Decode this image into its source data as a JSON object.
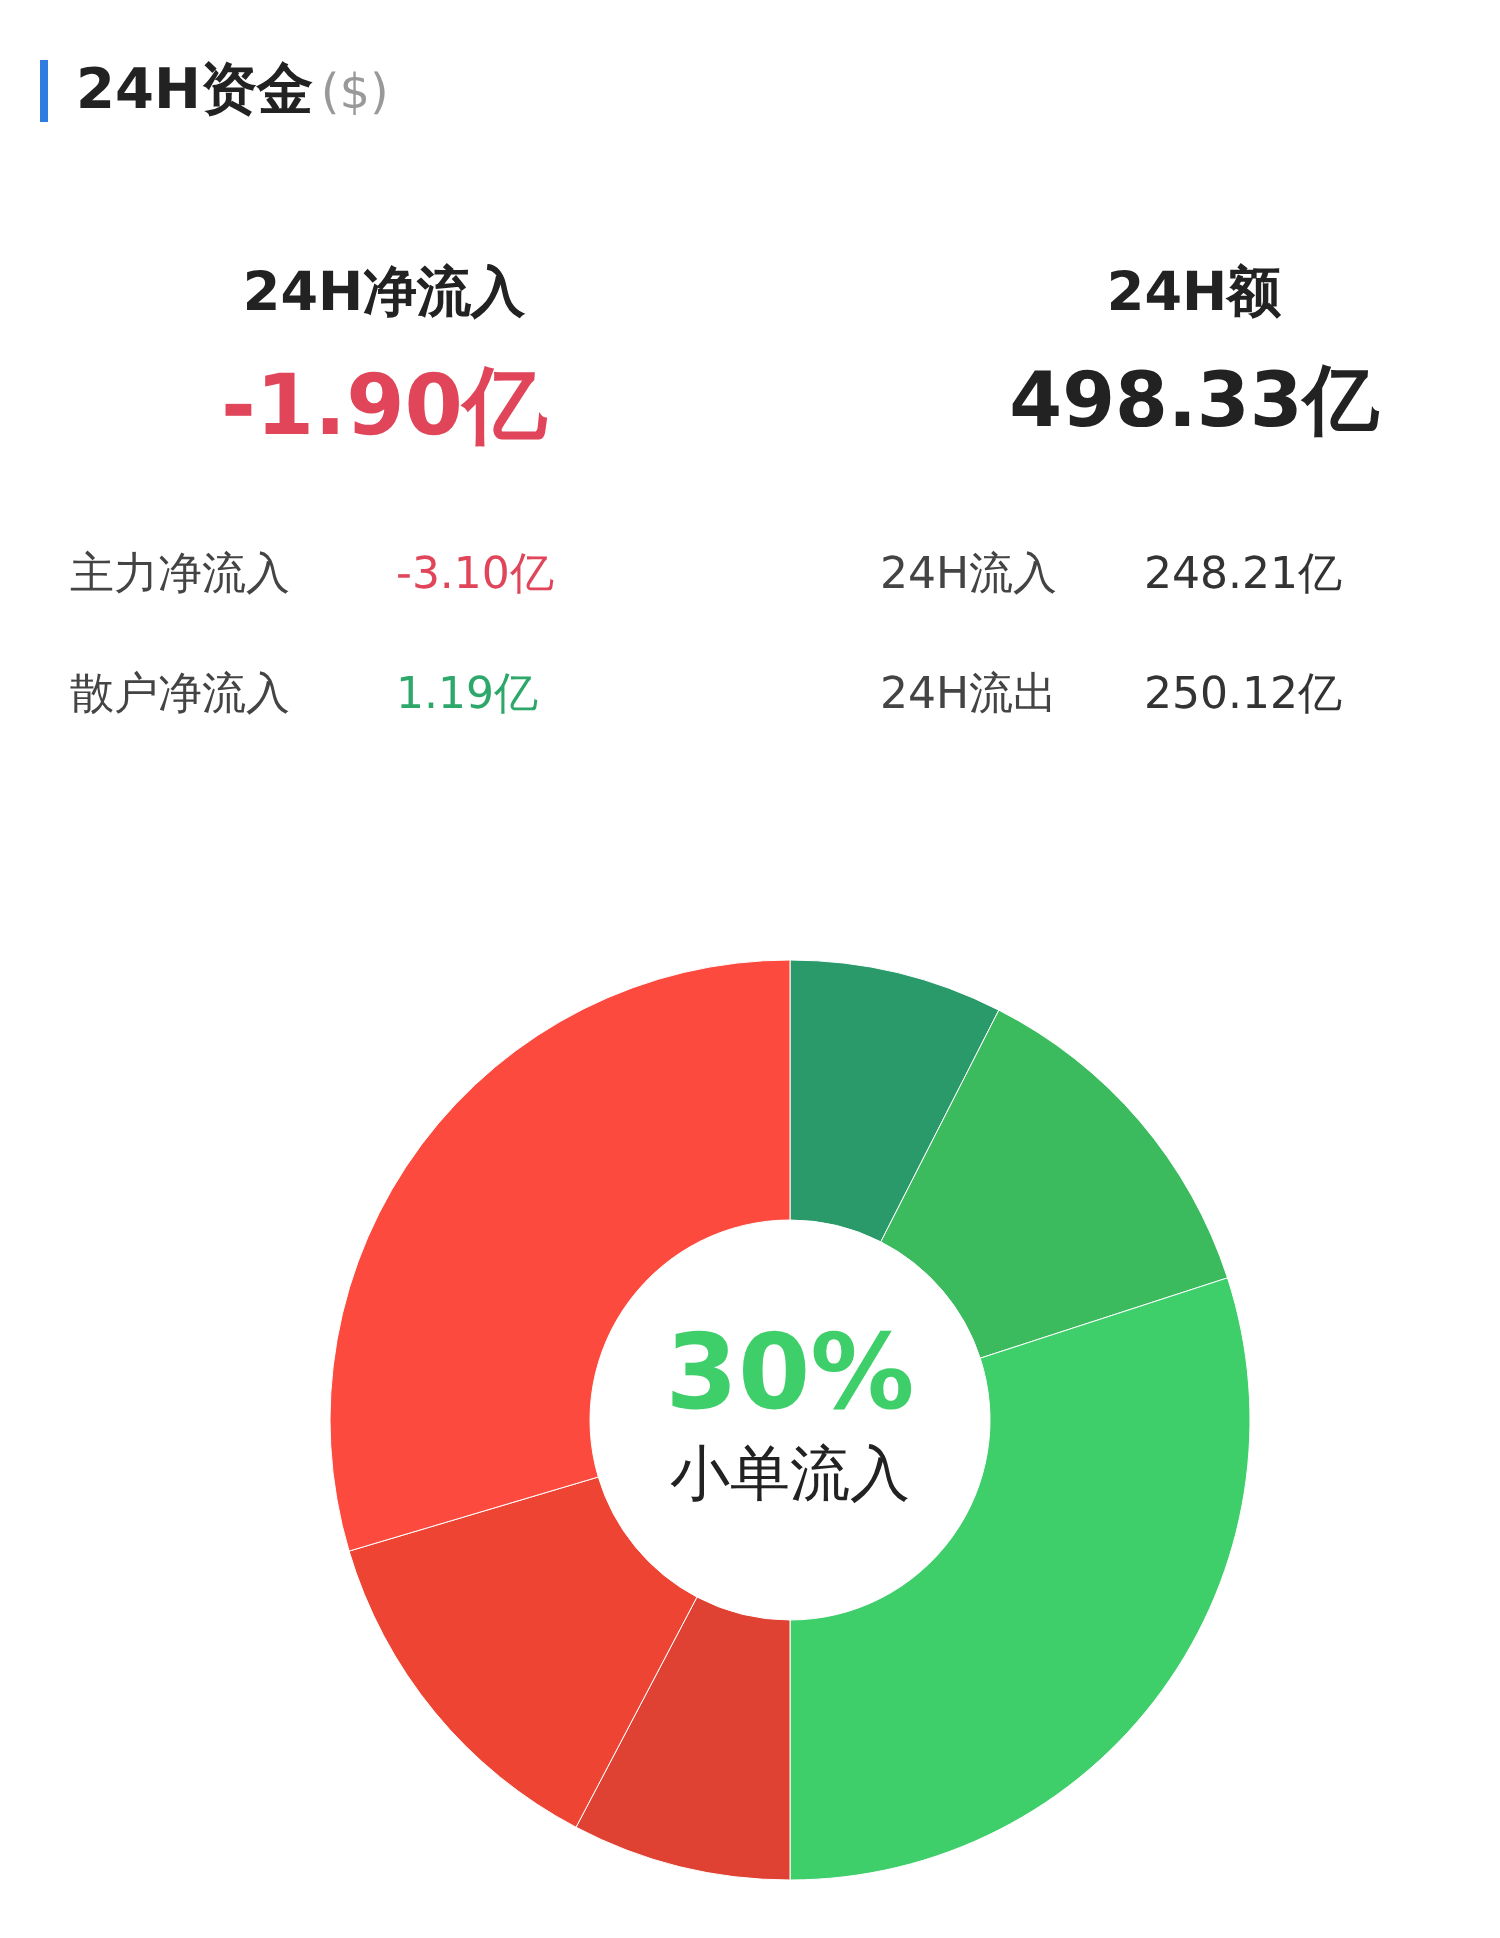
{
  "chart_data": {
    "type": "donut",
    "title": "24H资金",
    "subtitle": "($)",
    "annotations": [
      "24H净流入",
      "-1.90亿",
      "24H额",
      "498.33亿",
      "主力净流入",
      "-3.10亿",
      "24H流入",
      "248.21亿",
      "散户净流入",
      "1.19亿",
      "24H流出",
      "250.12亿"
    ],
    "categories": [
      null,
      null,
      "小单流入",
      null,
      null,
      null
    ],
    "values": [
      7.5,
      12.5,
      30,
      7.7,
      12.7,
      29.6
    ],
    "colors": [
      "#2a9a6a",
      "#3bbb5e",
      "#3ecf6a",
      "#df4233",
      "#ee4433",
      "#fd4a3f"
    ],
    "value_labels": [
      null,
      null,
      "30%",
      null,
      null,
      null
    ]
  }
}
